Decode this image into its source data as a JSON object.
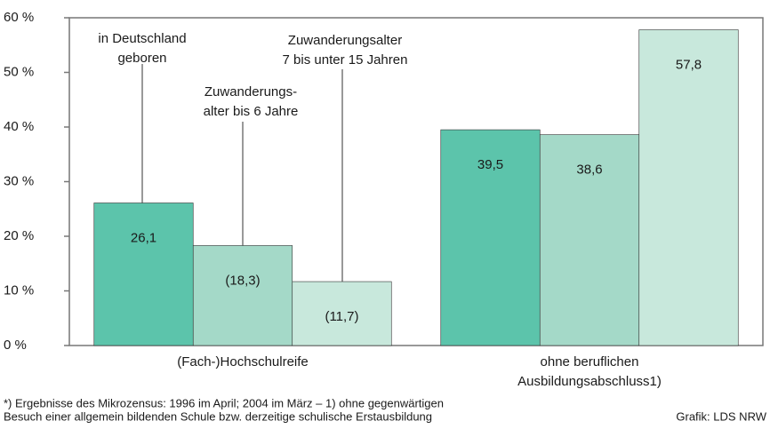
{
  "chart_data": {
    "type": "bar",
    "categories": [
      "(Fach-)Hochschulreife",
      "ohne beruflichen\nAusbildungsabschluss1)"
    ],
    "series": [
      {
        "name": "in Deutschland\ngeboren",
        "color": "#5cc4ab",
        "values": [
          26.1,
          39.5
        ],
        "value_labels": [
          "26,1",
          "39,5"
        ]
      },
      {
        "name": "Zuwanderungs-\nalter bis 6 Jahre",
        "color": "#a4d9c8",
        "values": [
          18.3,
          38.6
        ],
        "value_labels": [
          "(18,3)",
          "38,6"
        ]
      },
      {
        "name": "Zuwanderungsalter\n7 bis unter 15 Jahren",
        "color": "#c8e8dc",
        "values": [
          11.7,
          57.8
        ],
        "value_labels": [
          "(11,7)",
          "57,8"
        ]
      }
    ],
    "ylim": [
      0,
      60
    ],
    "yticks": [
      {
        "value": 0,
        "label": "0 %"
      },
      {
        "value": 10,
        "label": "10 %"
      },
      {
        "value": 20,
        "label": "20 %"
      },
      {
        "value": 30,
        "label": "30 %"
      },
      {
        "value": 40,
        "label": "40 %"
      },
      {
        "value": 50,
        "label": "50 %"
      },
      {
        "value": 60,
        "label": "60 %"
      }
    ],
    "footnote": [
      "*) Ergebnisse des Mikrozensus: 1996 im April; 2004 im März – 1) ohne gegenwärtigen",
      "Besuch einer allgemein bildenden Schule bzw. derzeitige schulische Erstausbildung"
    ],
    "source": "Grafik: LDS NRW"
  }
}
